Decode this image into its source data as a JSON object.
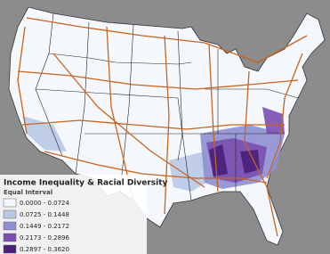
{
  "legend": {
    "title": "Income Inequality & Racial Diversity",
    "subtitle": "Equal Interval",
    "classes": [
      {
        "label": "0.0000 - 0.0724",
        "color": "#f4f7fb"
      },
      {
        "label": "0.0725 - 0.1448",
        "color": "#b9c8e6"
      },
      {
        "label": "0.1449 - 0.2172",
        "color": "#8f8fd0"
      },
      {
        "label": "0.2173 - 0.2896",
        "color": "#7a4fb0"
      },
      {
        "label": "0.2897 - 0.3620",
        "color": "#4a1f7a"
      }
    ]
  }
}
